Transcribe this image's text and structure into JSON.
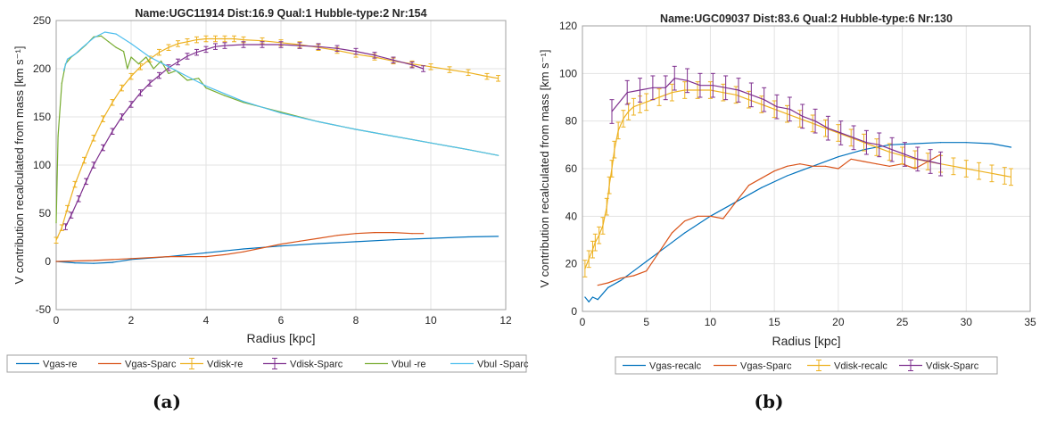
{
  "captions": {
    "a": "(a)",
    "b": "(b)"
  },
  "colors": {
    "gas_recalc": "#0072BD",
    "gas_sparc": "#D95319",
    "disk_recalc": "#EDB120",
    "disk_sparc": "#7E2F8E",
    "bul_re": "#77AC30",
    "bul_sparc": "#4DBEEE"
  },
  "chart_data": [
    {
      "type": "line",
      "title": "Name:UGC11914   Dist:16.9   Qual:1   Hubble-type:2   Nr:154",
      "xlabel": "Radius [kpc]",
      "ylabel": "V contribution recalculated from mass [km s⁻¹]",
      "xlim": [
        0,
        12
      ],
      "ylim": [
        -50,
        250
      ],
      "xticks": [
        "0",
        "2",
        "4",
        "6",
        "8",
        "10",
        "12"
      ],
      "yticks": [
        "-50",
        "0",
        "50",
        "100",
        "150",
        "200",
        "250"
      ],
      "grid": true,
      "legend_position": "bottom",
      "series": [
        {
          "name": "Vgas-re",
          "color_key": "gas_recalc",
          "x": [
            0,
            0.5,
            1,
            1.5,
            2,
            3,
            4,
            5,
            6,
            7,
            8,
            9,
            10,
            11,
            11.8
          ],
          "y": [
            0,
            -1.5,
            -2,
            -1,
            2,
            5,
            9,
            13,
            16,
            18.5,
            20.5,
            22.5,
            24,
            25.5,
            26
          ]
        },
        {
          "name": "Vgas-Sparc",
          "color_key": "gas_sparc",
          "x": [
            0,
            1,
            2,
            3,
            4,
            4.5,
            5,
            5.5,
            6,
            6.5,
            7,
            7.5,
            8,
            8.5,
            9,
            9.5,
            9.8
          ],
          "y": [
            0,
            1,
            3,
            5,
            5,
            7,
            10,
            14,
            18,
            21,
            24,
            27,
            29,
            30,
            30,
            29,
            29
          ]
        },
        {
          "name": "Vdisk-re",
          "color_key": "disk_recalc",
          "errorbars": true,
          "err": 3,
          "x": [
            0,
            0.15,
            0.3,
            0.5,
            0.75,
            1,
            1.25,
            1.5,
            1.75,
            2,
            2.25,
            2.5,
            2.75,
            3,
            3.25,
            3.5,
            3.75,
            4,
            4.25,
            4.5,
            4.75,
            5,
            5.5,
            6,
            6.5,
            7,
            7.5,
            8,
            8.5,
            9,
            9.5,
            10,
            10.5,
            11,
            11.5,
            11.8
          ],
          "y": [
            22,
            35,
            55,
            80,
            105,
            128,
            148,
            165,
            180,
            192,
            202,
            210,
            217,
            222,
            226,
            228,
            230,
            231,
            231,
            231,
            231,
            230,
            229,
            227,
            225,
            222,
            219,
            215,
            212,
            208,
            205,
            202,
            199,
            196,
            192,
            190
          ]
        },
        {
          "name": "Vdisk-Sparc",
          "color_key": "disk_sparc",
          "errorbars": true,
          "err": 3,
          "x": [
            0.25,
            0.4,
            0.6,
            0.8,
            1,
            1.25,
            1.5,
            1.75,
            2,
            2.25,
            2.5,
            2.75,
            3,
            3.25,
            3.5,
            3.75,
            4,
            4.25,
            4.5,
            5,
            5.5,
            6,
            6.5,
            7,
            7.5,
            8,
            8.5,
            9,
            9.5,
            9.8
          ],
          "y": [
            36,
            48,
            65,
            83,
            100,
            118,
            135,
            150,
            163,
            175,
            185,
            193,
            201,
            207,
            213,
            217,
            220,
            223,
            224,
            225,
            225,
            225,
            224,
            223,
            221,
            218,
            214,
            209,
            204,
            200
          ]
        },
        {
          "name": "Vbul -re",
          "color_key": "bul_re",
          "x": [
            0,
            0.05,
            0.15,
            0.25,
            0.4,
            0.6,
            0.8,
            1,
            1.2,
            1.4,
            1.6,
            1.8,
            1.9,
            2,
            2.2,
            2.4,
            2.6,
            2.8,
            3,
            3.2,
            3.5,
            3.8,
            4,
            4.5,
            5,
            6,
            7,
            8,
            9,
            10,
            11,
            11.8
          ],
          "y": [
            40,
            130,
            185,
            205,
            212,
            218,
            225,
            233,
            234,
            228,
            222,
            218,
            200,
            212,
            205,
            212,
            200,
            208,
            195,
            198,
            188,
            190,
            180,
            172,
            165,
            155,
            145,
            137,
            130,
            123,
            116,
            110
          ]
        },
        {
          "name": "Vbul  -Sparc",
          "color_key": "bul_sparc",
          "x": [
            0.2,
            0.3,
            0.5,
            0.7,
            1,
            1.3,
            1.6,
            2,
            2.5,
            3,
            3.5,
            4,
            4.5,
            5,
            6,
            7,
            8,
            9,
            10,
            11,
            11.8
          ],
          "y": [
            198,
            210,
            215,
            222,
            232,
            238,
            236,
            226,
            212,
            202,
            192,
            182,
            174,
            166,
            154,
            145,
            137,
            130,
            123,
            116,
            110
          ]
        }
      ]
    },
    {
      "type": "line",
      "title": "Name:UGC09037   Dist:83.6   Qual:2   Hubble-type:6   Nr:130",
      "xlabel": "Radius [kpc]",
      "ylabel": "V contribution recalculated from mass [km s⁻¹]",
      "xlim": [
        0,
        35
      ],
      "ylim": [
        0,
        120
      ],
      "xticks": [
        "0",
        "5",
        "10",
        "15",
        "20",
        "25",
        "30",
        "35"
      ],
      "yticks": [
        "0",
        "20",
        "40",
        "60",
        "80",
        "100",
        "120"
      ],
      "grid": true,
      "legend_position": "bottom",
      "series": [
        {
          "name": "Vgas-recalc",
          "color_key": "gas_recalc",
          "x": [
            0.2,
            0.5,
            0.8,
            1.2,
            2,
            3,
            4,
            5,
            6,
            7,
            8,
            10,
            12,
            14,
            16,
            18,
            20,
            22,
            24,
            26,
            28,
            30,
            32,
            33.5
          ],
          "y": [
            6,
            4,
            6,
            5,
            10,
            13,
            17,
            21,
            25,
            29,
            33,
            40,
            46,
            52,
            57,
            61,
            65,
            68,
            70,
            70.5,
            71,
            71,
            70.5,
            69
          ]
        },
        {
          "name": "Vgas-Sparc",
          "color_key": "gas_sparc",
          "x": [
            1.2,
            2,
            3,
            4,
            5,
            6,
            7,
            8,
            9,
            10,
            11,
            12,
            13,
            14,
            15,
            16,
            17,
            18,
            19,
            20,
            21,
            22,
            23,
            24,
            25,
            26,
            27,
            28
          ],
          "y": [
            11,
            12,
            14,
            15,
            17,
            25,
            33,
            38,
            40,
            40,
            39,
            46,
            53,
            56,
            59,
            61,
            62,
            61,
            61,
            60,
            64,
            63,
            62,
            61,
            62,
            60,
            63,
            66
          ]
        },
        {
          "name": "Vdisk-recalc",
          "color_key": "disk_recalc",
          "errorbars": true,
          "err": 3.5,
          "x": [
            0.2,
            0.5,
            0.8,
            1,
            1.3,
            1.6,
            1.9,
            2.1,
            2.3,
            2.5,
            2.8,
            3.2,
            3.6,
            4,
            4.5,
            5,
            6,
            7,
            8,
            9,
            10,
            11,
            12,
            13,
            14,
            15,
            16,
            17,
            18,
            19,
            20,
            21,
            22,
            23,
            24,
            25,
            26,
            27,
            28,
            29,
            30,
            31,
            32,
            33,
            33.5
          ],
          "y": [
            18,
            22,
            26,
            29,
            32,
            36,
            44,
            53,
            60,
            68,
            76,
            81,
            84,
            86,
            87,
            88,
            90,
            92,
            93,
            93,
            93,
            92,
            91,
            89,
            87,
            85,
            83,
            81,
            79,
            77,
            75,
            73,
            71,
            69,
            67,
            65.5,
            64,
            63,
            62,
            61,
            60,
            59,
            58,
            57,
            56.5
          ]
        },
        {
          "name": "Vdisk-Sparc",
          "color_key": "disk_sparc",
          "errorbars": true,
          "err": 5,
          "x": [
            2.3,
            3.5,
            4.5,
            5.5,
            6.5,
            7.2,
            8.2,
            9.2,
            10.2,
            11.2,
            12.2,
            13.2,
            14.2,
            15.2,
            16.2,
            17.2,
            18.2,
            19.2,
            20.2,
            21.2,
            22.2,
            23.2,
            24.2,
            25.2,
            26.2,
            27.2,
            28
          ],
          "y": [
            84,
            92,
            93,
            94,
            94,
            98,
            97,
            95,
            95,
            94,
            93,
            91,
            89,
            86,
            85,
            82,
            80,
            77,
            75,
            73,
            71,
            70,
            68,
            66,
            64,
            63,
            62
          ]
        }
      ]
    }
  ]
}
